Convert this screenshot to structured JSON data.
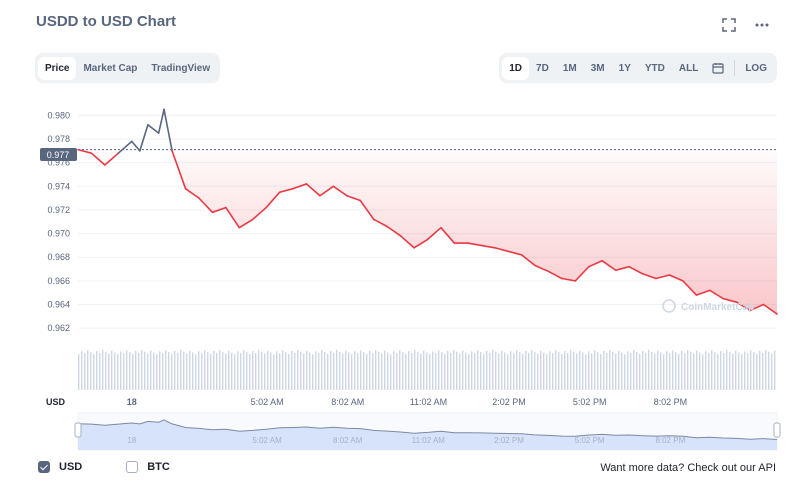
{
  "title": "USDD to USD Chart",
  "icons": {
    "fullscreen": "fullscreen-icon",
    "more": "more-icon",
    "calendar": "calendar-icon"
  },
  "tabs": [
    {
      "label": "Price",
      "active": true
    },
    {
      "label": "Market Cap",
      "active": false
    },
    {
      "label": "TradingView",
      "active": false
    }
  ],
  "ranges": [
    {
      "label": "1D",
      "active": true
    },
    {
      "label": "7D",
      "active": false
    },
    {
      "label": "1M",
      "active": false
    },
    {
      "label": "3M",
      "active": false
    },
    {
      "label": "1Y",
      "active": false
    },
    {
      "label": "YTD",
      "active": false
    },
    {
      "label": "ALL",
      "active": false
    }
  ],
  "log_label": "LOG",
  "legend": [
    {
      "label": "USD",
      "checked": true
    },
    {
      "label": "BTC",
      "checked": false
    }
  ],
  "more_data": "Want more data? Check out our API",
  "colors": {
    "up": "#58667e",
    "down": "#ea3943",
    "fill": "#ea3943",
    "volume": "#cfd6e4",
    "navigator": "#d7e3fb"
  },
  "chart_data": {
    "type": "line",
    "currency_label": "USD",
    "current_price_label": "0.977",
    "reference_price": 0.9771,
    "ylim": [
      0.961,
      0.9813
    ],
    "yticks": [
      "0.980",
      "0.978",
      "0.976",
      "0.974",
      "0.972",
      "0.970",
      "0.968",
      "0.966",
      "0.964",
      "0.962"
    ],
    "ytick_values": [
      0.98,
      0.978,
      0.976,
      0.974,
      0.972,
      0.97,
      0.968,
      0.966,
      0.964,
      0.962
    ],
    "xticks": [
      "18",
      "5:02 AM",
      "8:02 AM",
      "11:02 AM",
      "2:02 PM",
      "5:02 PM",
      "8:02 PM"
    ],
    "xtick_hours": [
      0,
      5.033,
      8.033,
      11.033,
      14.033,
      17.033,
      20.033
    ],
    "x_hours": [
      -2,
      -1.5,
      -1,
      -0.5,
      0,
      0.3,
      0.6,
      1,
      1.2,
      1.5,
      2,
      2.5,
      3,
      3.5,
      4,
      4.5,
      5,
      5.5,
      6,
      6.5,
      7,
      7.5,
      8,
      8.5,
      9,
      9.5,
      10,
      10.5,
      11,
      11.5,
      12,
      12.5,
      13,
      13.5,
      14,
      14.5,
      15,
      15.5,
      16,
      16.5,
      17,
      17.5,
      18,
      18.5,
      19,
      19.5,
      20,
      20.5,
      21,
      21.5,
      22,
      22.5,
      23,
      23.5,
      24
    ],
    "y_values": [
      0.9771,
      0.9768,
      0.9758,
      0.9768,
      0.9778,
      0.977,
      0.9792,
      0.9785,
      0.9805,
      0.977,
      0.9738,
      0.973,
      0.9718,
      0.9722,
      0.9705,
      0.9712,
      0.9722,
      0.9735,
      0.9738,
      0.9742,
      0.9732,
      0.974,
      0.9732,
      0.9728,
      0.9712,
      0.9706,
      0.9698,
      0.9688,
      0.9695,
      0.9705,
      0.9692,
      0.9692,
      0.969,
      0.9688,
      0.9685,
      0.9682,
      0.9673,
      0.9668,
      0.9662,
      0.966,
      0.9672,
      0.9677,
      0.9669,
      0.9672,
      0.9666,
      0.9662,
      0.9665,
      0.966,
      0.9648,
      0.9652,
      0.9645,
      0.9642,
      0.9635,
      0.964,
      0.9632
    ],
    "volume_level": 0.9,
    "watermark": "CoinMarketCap",
    "grid": true
  }
}
